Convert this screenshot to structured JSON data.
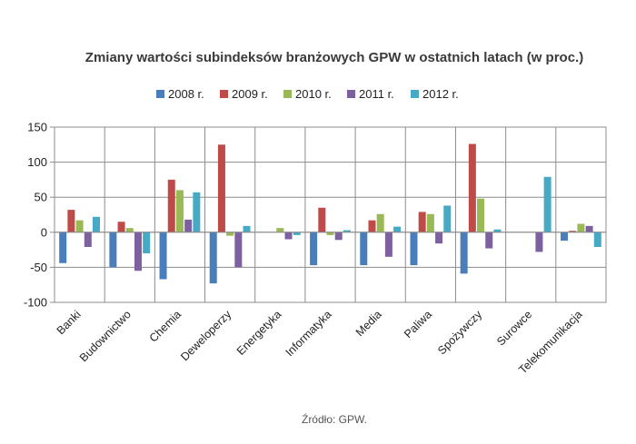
{
  "chart_data": {
    "type": "bar",
    "title": "Zmiany wartości subindeksów branżowych GPW w ostatnich latach (w proc.)",
    "source": "Źródło: GPW.",
    "categories": [
      "Banki",
      "Budownictwo",
      "Chemia",
      "Deweloperzy",
      "Energetyka",
      "Informatyka",
      "Media",
      "Paliwa",
      "Spożywczy",
      "Surowce",
      "Telekomunikacja"
    ],
    "series": [
      {
        "name": "2008 r.",
        "color": "#4a7ebb",
        "values": [
          -44,
          -50,
          -67,
          -73,
          null,
          -47,
          -47,
          -47,
          -59,
          null,
          -12
        ]
      },
      {
        "name": "2009 r.",
        "color": "#be4b48",
        "values": [
          32,
          15,
          75,
          125,
          null,
          35,
          17,
          29,
          126,
          null,
          2
        ]
      },
      {
        "name": "2010 r.",
        "color": "#98b954",
        "values": [
          17,
          6,
          60,
          -5,
          6,
          -4,
          26,
          26,
          48,
          null,
          12
        ]
      },
      {
        "name": "2011 r.",
        "color": "#7d60a0",
        "values": [
          -21,
          -55,
          18,
          -50,
          -10,
          -11,
          -35,
          -16,
          -23,
          -28,
          9
        ]
      },
      {
        "name": "2012 r.",
        "color": "#46aac5",
        "values": [
          22,
          -30,
          57,
          9,
          -4,
          3,
          8,
          38,
          4,
          79,
          -21
        ]
      }
    ],
    "ylim": [
      -100,
      150
    ],
    "yticks": [
      -100,
      -50,
      0,
      50,
      100,
      150
    ],
    "grid": true,
    "legend": "top"
  }
}
